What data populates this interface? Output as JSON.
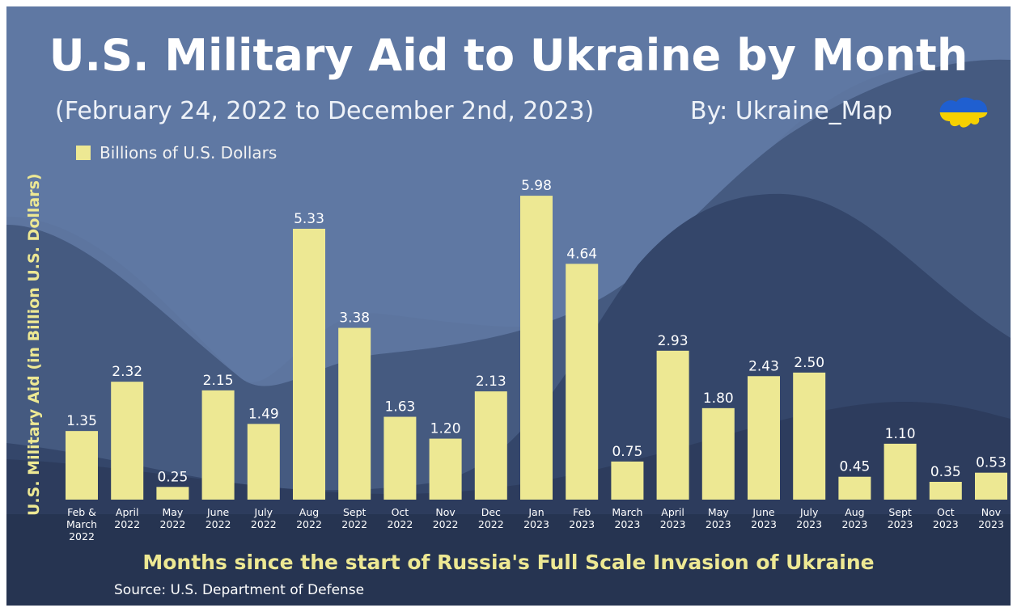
{
  "header": {
    "title": "U.S. Military Aid to Ukraine by Month",
    "subtitle": "(February 24, 2022 to December 2nd, 2023)",
    "byline": "By: Ukraine_Map",
    "logo_icon": "ukraine-map-flag-icon"
  },
  "footer": {
    "source": "Source: U.S. Department of Defense"
  },
  "colors": {
    "bar": "#ede893",
    "background": "#5d759f",
    "axis_text": "#ede893"
  },
  "chart_data": {
    "type": "bar",
    "title": "U.S. Military Aid to Ukraine by Month",
    "subtitle": "(February 24, 2022 to December 2nd, 2023)",
    "xlabel": "Months since the start of Russia's Full Scale Invasion of Ukraine",
    "ylabel": "U.S. Military Aid (in Billion U.S. Dollars)",
    "legend": {
      "placement": "top-left",
      "entries": [
        "Billions of U.S. Dollars"
      ]
    },
    "grid": false,
    "ylim": [
      0,
      6.3
    ],
    "categories": [
      [
        "Feb &",
        "March",
        "2022"
      ],
      [
        "April",
        "2022"
      ],
      [
        "May",
        "2022"
      ],
      [
        "June",
        "2022"
      ],
      [
        "July",
        "2022"
      ],
      [
        "Aug",
        "2022"
      ],
      [
        "Sept",
        "2022"
      ],
      [
        "Oct",
        "2022"
      ],
      [
        "Nov",
        "2022"
      ],
      [
        "Dec",
        "2022"
      ],
      [
        "Jan",
        "2023"
      ],
      [
        "Feb",
        "2023"
      ],
      [
        "March",
        "2023"
      ],
      [
        "April",
        "2023"
      ],
      [
        "May",
        "2023"
      ],
      [
        "June",
        "2023"
      ],
      [
        "July",
        "2023"
      ],
      [
        "Aug",
        "2023"
      ],
      [
        "Sept",
        "2023"
      ],
      [
        "Oct",
        "2023"
      ],
      [
        "Nov",
        "2023"
      ]
    ],
    "series": [
      {
        "name": "Billions of U.S. Dollars",
        "values": [
          1.35,
          2.32,
          0.25,
          2.15,
          1.49,
          5.33,
          3.38,
          1.63,
          1.2,
          2.13,
          5.98,
          4.64,
          0.75,
          2.93,
          1.8,
          2.43,
          2.5,
          0.45,
          1.1,
          0.35,
          0.53
        ],
        "labels": [
          "1.35",
          "2.32",
          "0.25",
          "2.15",
          "1.49",
          "5.33",
          "3.38",
          "1.63",
          "1.20",
          "2.13",
          "5.98",
          "4.64",
          "0.75",
          "2.93",
          "1.80",
          "2.43",
          "2.50",
          "0.45",
          "1.10",
          "0.35",
          "0.53"
        ]
      }
    ]
  }
}
